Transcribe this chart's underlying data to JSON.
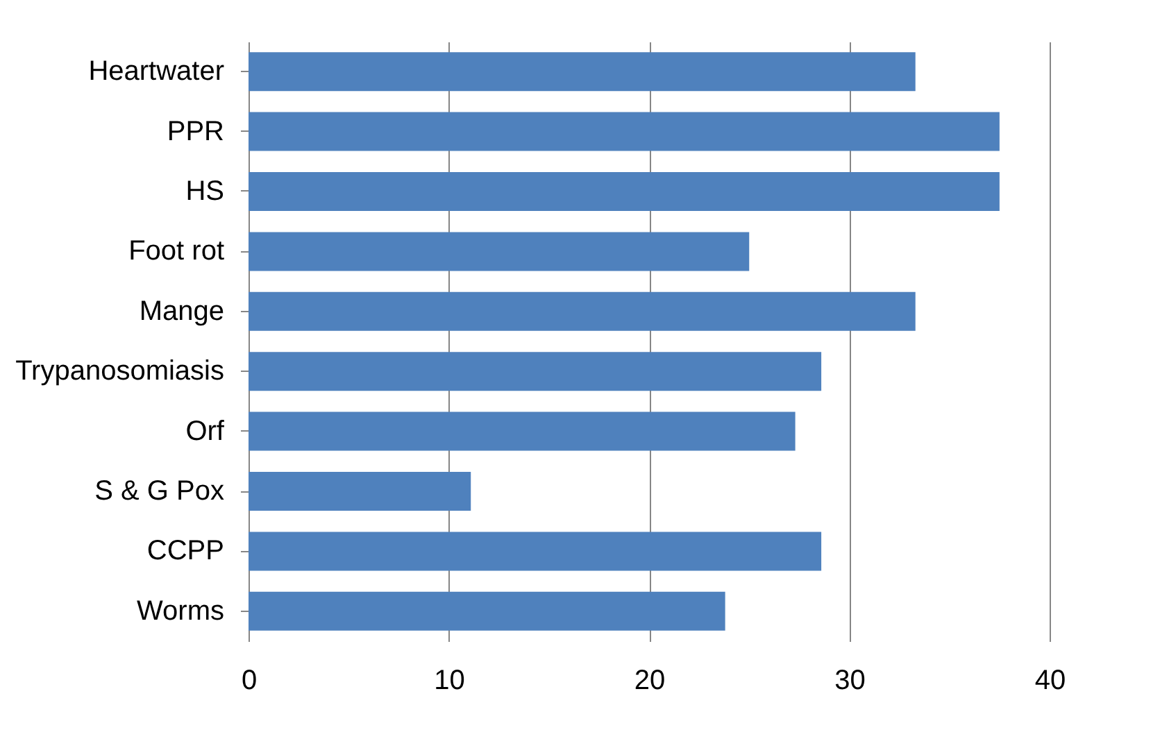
{
  "chart_data": {
    "type": "bar",
    "orientation": "horizontal",
    "categories": [
      "Heartwater",
      "PPR",
      "HS",
      "Foot rot",
      "Mange",
      "Trypanosomiasis",
      "Orf",
      "S & G Pox",
      "CCPP",
      "Worms"
    ],
    "values": [
      33.3,
      37.5,
      37.5,
      25,
      33.3,
      28.6,
      27.3,
      11.1,
      28.6,
      23.8
    ],
    "color": "#4f81bd",
    "xlim": [
      0,
      40
    ],
    "xticks": [
      0,
      10,
      20,
      30,
      40
    ],
    "grid": "x"
  }
}
